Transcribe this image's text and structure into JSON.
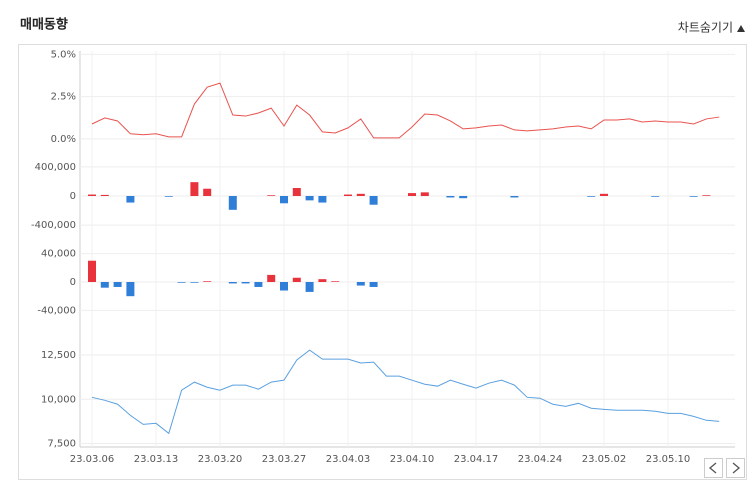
{
  "title": "매매동향",
  "toggle": "차트숨기기",
  "chart_data": [
    {
      "type": "line",
      "color": "#e8534f",
      "ylim": [
        -0.6,
        5.2
      ],
      "yticks": [
        {
          "value": 5,
          "label": "5.0%"
        },
        {
          "value": 2.5,
          "label": "2.5%"
        },
        {
          "value": 0,
          "label": "0.0%"
        }
      ],
      "grid": true,
      "values": [
        0.88,
        1.24,
        1.06,
        0.3,
        0.24,
        0.3,
        0.12,
        0.12,
        2.06,
        3.06,
        3.3,
        1.41,
        1.35,
        1.53,
        1.82,
        0.76,
        2.0,
        1.41,
        0.41,
        0.35,
        0.65,
        1.18,
        0.06,
        0.06,
        0.06,
        0.7,
        1.47,
        1.41,
        1.06,
        0.59,
        0.65,
        0.76,
        0.82,
        0.53,
        0.47,
        0.53,
        0.59,
        0.7,
        0.76,
        0.59,
        1.12,
        1.12,
        1.18,
        1.0,
        1.06,
        1.0,
        1.0,
        0.88,
        1.18,
        1.29
      ]
    },
    {
      "type": "bar",
      "up_color": "#e8323c",
      "down_color": "#2f7ed8",
      "ylim": [
        -550000,
        550000
      ],
      "yticks": [
        {
          "value": 400000,
          "label": "400,000"
        },
        0,
        {
          "value": -400000,
          "label": "-400,000"
        }
      ],
      "grid": true,
      "values": [
        20000,
        15000,
        0,
        -90000,
        0,
        0,
        -10000,
        0,
        190000,
        100000,
        0,
        -190000,
        0,
        0,
        10000,
        -100000,
        110000,
        -60000,
        -90000,
        0,
        20000,
        30000,
        -120000,
        0,
        0,
        40000,
        50000,
        0,
        -20000,
        -30000,
        0,
        0,
        0,
        -20000,
        0,
        0,
        0,
        0,
        0,
        -10000,
        30000,
        0,
        0,
        0,
        -10000,
        0,
        0,
        -10000,
        10000,
        0
      ]
    },
    {
      "type": "bar",
      "up_color": "#e8323c",
      "down_color": "#2f7ed8",
      "ylim": [
        -55000,
        55000
      ],
      "yticks": [
        {
          "value": 40000,
          "label": "40,000"
        },
        0,
        {
          "value": -40000,
          "label": "-40,000"
        }
      ],
      "grid": true,
      "values": [
        30000,
        -8000,
        -7000,
        -20000,
        0,
        0,
        0,
        -1000,
        -1000,
        1000,
        0,
        -2000,
        -2000,
        -7000,
        10000,
        -12000,
        6000,
        -14000,
        4000,
        1000,
        0,
        -5000,
        -7000,
        0,
        0,
        0,
        0,
        0,
        0,
        0,
        0,
        0,
        0,
        0,
        0,
        0,
        0,
        0,
        0,
        0,
        0,
        0,
        0,
        0,
        0,
        0,
        0,
        0,
        0,
        0
      ]
    },
    {
      "type": "line",
      "color": "#5aa0e0",
      "ylim": [
        7300,
        14200
      ],
      "yticks": [
        {
          "value": 12500,
          "label": "12,500"
        },
        {
          "value": 10000,
          "label": "10,000"
        },
        {
          "value": 7500,
          "label": "7,500"
        }
      ],
      "grid": true,
      "categories": [
        "23.03.06",
        null,
        null,
        null,
        null,
        "23.03.13",
        null,
        null,
        null,
        null,
        "23.03.20",
        null,
        null,
        null,
        null,
        "23.03.27",
        null,
        null,
        null,
        null,
        "23.04.03",
        null,
        null,
        null,
        null,
        "23.04.10",
        null,
        null,
        null,
        null,
        "23.04.17",
        null,
        null,
        null,
        null,
        "23.04.24",
        null,
        null,
        null,
        null,
        "23.05.02",
        null,
        null,
        null,
        null,
        "23.05.10",
        null,
        null,
        null,
        null
      ],
      "values": [
        10110,
        9940,
        9720,
        9090,
        8580,
        8640,
        8070,
        10510,
        10970,
        10680,
        10510,
        10800,
        10800,
        10570,
        10970,
        11080,
        12220,
        12780,
        12270,
        12270,
        12270,
        12050,
        12100,
        11310,
        11310,
        11080,
        10850,
        10740,
        11080,
        10850,
        10630,
        10910,
        11080,
        10800,
        10110,
        10060,
        9720,
        9600,
        9770,
        9490,
        9430,
        9380,
        9380,
        9380,
        9320,
        9200,
        9200,
        9030,
        8810,
        8750
      ]
    }
  ]
}
